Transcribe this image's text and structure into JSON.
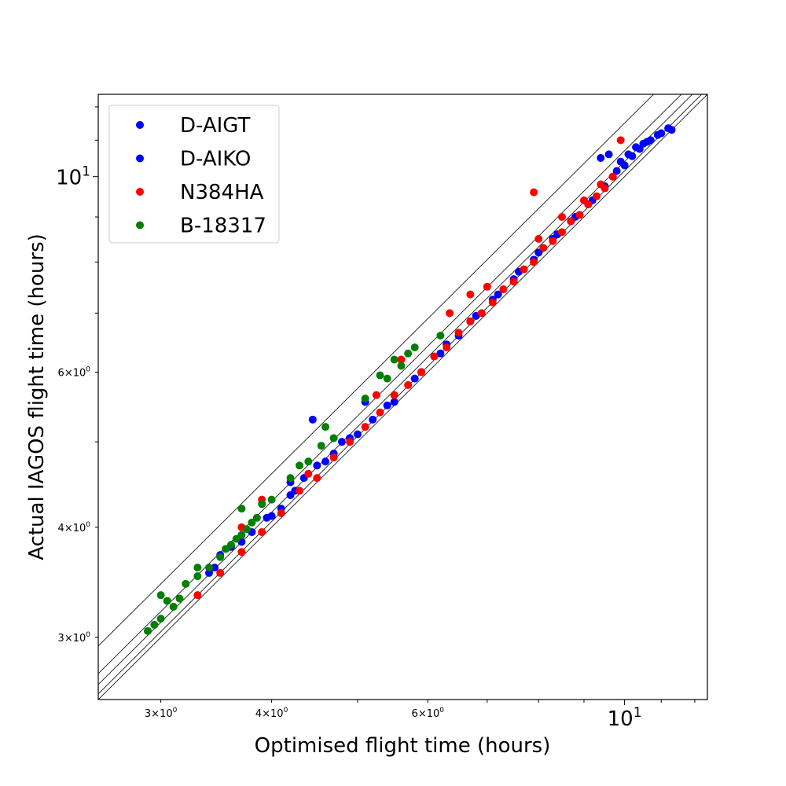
{
  "chart_data": {
    "type": "scatter",
    "xlabel": "Optimised flight time (hours)",
    "ylabel": "Actual IAGOS flight time (hours)",
    "xscale": "log",
    "yscale": "log",
    "xlim": [
      2.55,
      12.4
    ],
    "ylim": [
      2.55,
      12.4
    ],
    "grid": false,
    "legend_position": "top-left",
    "x_ticks": [
      {
        "value": 3,
        "label": "3×10⁰",
        "major": false
      },
      {
        "value": 4,
        "label": "4×10⁰",
        "major": false
      },
      {
        "value": 6,
        "label": "6×10⁰",
        "major": false
      },
      {
        "value": 10,
        "label": "10¹",
        "major": true
      }
    ],
    "y_ticks": [
      {
        "value": 3,
        "label": "3×10⁰",
        "major": false
      },
      {
        "value": 4,
        "label": "4×10⁰",
        "major": false
      },
      {
        "value": 6,
        "label": "6×10⁰",
        "major": false
      },
      {
        "value": 10,
        "label": "10¹",
        "major": true
      }
    ],
    "reference_line_ratios": [
      1.0,
      1.015,
      1.04,
      1.07,
      1.15
    ],
    "series": [
      {
        "name": "D-AIGT",
        "color": "#0000ff",
        "points": [
          [
            3.5,
            3.72
          ],
          [
            3.6,
            3.8
          ],
          [
            3.8,
            3.95
          ],
          [
            4.0,
            4.12
          ],
          [
            4.2,
            4.35
          ],
          [
            4.35,
            4.55
          ],
          [
            4.5,
            4.7
          ],
          [
            4.7,
            4.85
          ],
          [
            4.9,
            5.05
          ],
          [
            5.2,
            5.3
          ],
          [
            5.5,
            5.55
          ],
          [
            5.8,
            5.9
          ],
          [
            6.2,
            6.3
          ],
          [
            6.5,
            6.6
          ],
          [
            6.8,
            6.95
          ],
          [
            7.2,
            7.35
          ],
          [
            7.6,
            7.8
          ],
          [
            8.0,
            8.2
          ],
          [
            8.4,
            8.6
          ],
          [
            8.8,
            9.0
          ],
          [
            9.2,
            9.4
          ],
          [
            9.4,
            10.5
          ],
          [
            9.6,
            10.6
          ],
          [
            9.9,
            10.4
          ],
          [
            10.1,
            10.6
          ],
          [
            10.3,
            10.8
          ],
          [
            10.5,
            10.9
          ],
          [
            10.7,
            11.0
          ],
          [
            11.0,
            11.2
          ],
          [
            11.3,
            11.3
          ],
          [
            3.4,
            3.55
          ],
          [
            4.45,
            5.3
          ],
          [
            5.1,
            5.55
          ],
          [
            4.1,
            4.2
          ]
        ]
      },
      {
        "name": "D-AIKO",
        "color": "#0000ff",
        "points": [
          [
            3.45,
            3.6
          ],
          [
            3.7,
            3.85
          ],
          [
            3.95,
            4.1
          ],
          [
            4.25,
            4.4
          ],
          [
            4.6,
            4.75
          ],
          [
            5.0,
            5.1
          ],
          [
            5.4,
            5.5
          ],
          [
            5.9,
            6.0
          ],
          [
            6.3,
            6.45
          ],
          [
            6.7,
            6.85
          ],
          [
            7.1,
            7.25
          ],
          [
            7.5,
            7.65
          ],
          [
            7.9,
            8.05
          ],
          [
            8.3,
            8.5
          ],
          [
            8.7,
            8.9
          ],
          [
            9.1,
            9.3
          ],
          [
            9.5,
            9.75
          ],
          [
            9.8,
            10.15
          ],
          [
            10.0,
            10.3
          ],
          [
            10.2,
            10.55
          ],
          [
            10.4,
            10.75
          ],
          [
            10.6,
            10.95
          ],
          [
            10.9,
            11.15
          ],
          [
            11.2,
            11.35
          ],
          [
            4.2,
            4.5
          ],
          [
            4.8,
            5.0
          ],
          [
            9.7,
            10.0
          ]
        ]
      },
      {
        "name": "N384HA",
        "color": "#ff0000",
        "points": [
          [
            3.3,
            3.35
          ],
          [
            3.5,
            3.55
          ],
          [
            3.7,
            3.75
          ],
          [
            3.9,
            3.95
          ],
          [
            4.1,
            4.15
          ],
          [
            4.3,
            4.4
          ],
          [
            4.5,
            4.55
          ],
          [
            4.7,
            4.8
          ],
          [
            4.9,
            5.0
          ],
          [
            5.1,
            5.2
          ],
          [
            5.3,
            5.4
          ],
          [
            5.5,
            5.65
          ],
          [
            5.7,
            5.8
          ],
          [
            5.9,
            6.0
          ],
          [
            6.1,
            6.25
          ],
          [
            6.3,
            6.4
          ],
          [
            6.5,
            6.65
          ],
          [
            6.7,
            6.85
          ],
          [
            6.9,
            7.0
          ],
          [
            7.1,
            7.2
          ],
          [
            7.3,
            7.45
          ],
          [
            7.5,
            7.6
          ],
          [
            7.7,
            7.85
          ],
          [
            7.9,
            8.0
          ],
          [
            8.1,
            8.3
          ],
          [
            8.3,
            8.45
          ],
          [
            8.5,
            8.65
          ],
          [
            8.7,
            8.9
          ],
          [
            8.9,
            9.05
          ],
          [
            9.1,
            9.3
          ],
          [
            9.3,
            9.5
          ],
          [
            9.5,
            9.7
          ],
          [
            9.7,
            10.0
          ],
          [
            9.9,
            11.0
          ],
          [
            7.9,
            9.6
          ],
          [
            6.7,
            7.35
          ],
          [
            5.6,
            6.2
          ],
          [
            3.7,
            4.0
          ],
          [
            3.9,
            4.3
          ],
          [
            4.4,
            4.6
          ],
          [
            5.25,
            5.65
          ],
          [
            6.35,
            7.0
          ],
          [
            7.0,
            7.5
          ],
          [
            8.0,
            8.5
          ],
          [
            8.5,
            9.0
          ],
          [
            9.0,
            9.4
          ],
          [
            9.4,
            9.8
          ]
        ]
      },
      {
        "name": "B-18317",
        "color": "#008000",
        "points": [
          [
            2.9,
            3.05
          ],
          [
            2.95,
            3.1
          ],
          [
            3.0,
            3.15
          ],
          [
            3.05,
            3.3
          ],
          [
            3.1,
            3.25
          ],
          [
            3.15,
            3.32
          ],
          [
            3.2,
            3.45
          ],
          [
            3.3,
            3.52
          ],
          [
            3.4,
            3.6
          ],
          [
            3.5,
            3.7
          ],
          [
            3.55,
            3.78
          ],
          [
            3.6,
            3.82
          ],
          [
            3.65,
            3.88
          ],
          [
            3.7,
            3.92
          ],
          [
            3.75,
            3.98
          ],
          [
            3.8,
            4.05
          ],
          [
            3.85,
            4.1
          ],
          [
            3.9,
            4.25
          ],
          [
            4.0,
            4.3
          ],
          [
            4.2,
            4.55
          ],
          [
            4.4,
            4.75
          ],
          [
            4.55,
            4.95
          ],
          [
            4.7,
            5.05
          ],
          [
            5.1,
            5.6
          ],
          [
            5.4,
            5.9
          ],
          [
            5.6,
            6.1
          ],
          [
            5.7,
            6.3
          ],
          [
            5.8,
            6.4
          ],
          [
            5.3,
            5.95
          ],
          [
            3.0,
            3.35
          ],
          [
            3.3,
            3.6
          ],
          [
            3.7,
            4.2
          ],
          [
            4.3,
            4.7
          ],
          [
            4.6,
            5.2
          ],
          [
            5.5,
            6.2
          ],
          [
            6.2,
            6.6
          ]
        ]
      }
    ]
  }
}
